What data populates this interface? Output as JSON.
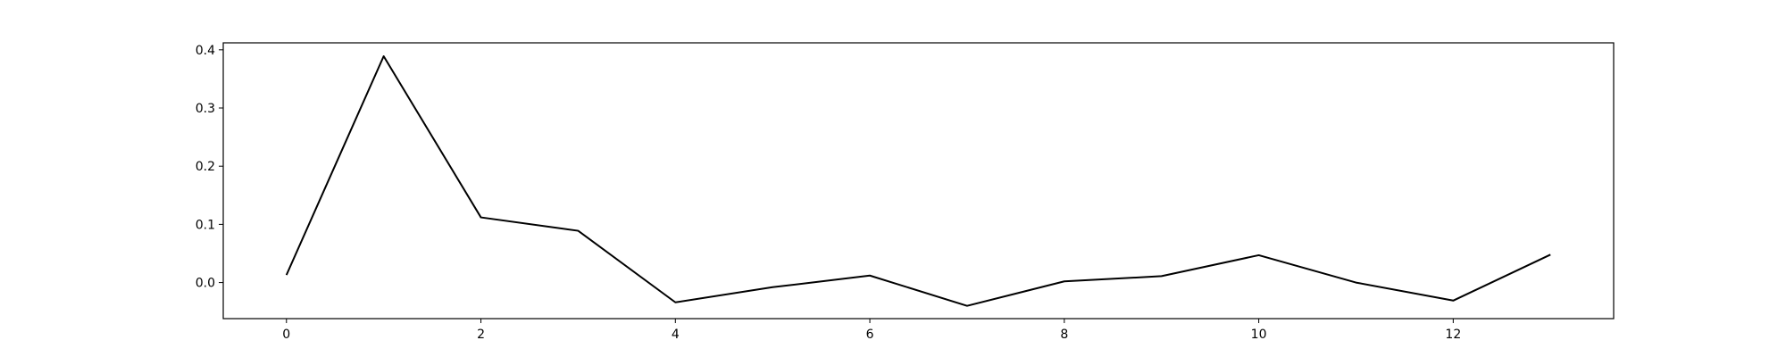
{
  "chart_data": {
    "type": "line",
    "title": "",
    "xlabel": "",
    "ylabel": "",
    "xlim": [
      -0.65,
      13.65
    ],
    "ylim": [
      -0.062,
      0.412
    ],
    "x_ticks": [
      0,
      2,
      4,
      6,
      8,
      10,
      12
    ],
    "y_ticks": [
      0.0,
      0.1,
      0.2,
      0.3,
      0.4
    ],
    "x_tick_labels": [
      "0",
      "2",
      "4",
      "6",
      "8",
      "10",
      "12"
    ],
    "y_tick_labels": [
      "0.0",
      "0.1",
      "0.2",
      "0.3",
      "0.4"
    ],
    "grid": false,
    "legend": "none",
    "series": [
      {
        "color": "#000000",
        "x": [
          0,
          1,
          2,
          3,
          4,
          5,
          6,
          7,
          8,
          9,
          10,
          11,
          12,
          13
        ],
        "values": [
          0.013,
          0.389,
          0.112,
          0.089,
          -0.034,
          -0.008,
          0.012,
          -0.04,
          0.002,
          0.011,
          0.047,
          0.0,
          -0.031,
          0.048
        ]
      }
    ]
  }
}
